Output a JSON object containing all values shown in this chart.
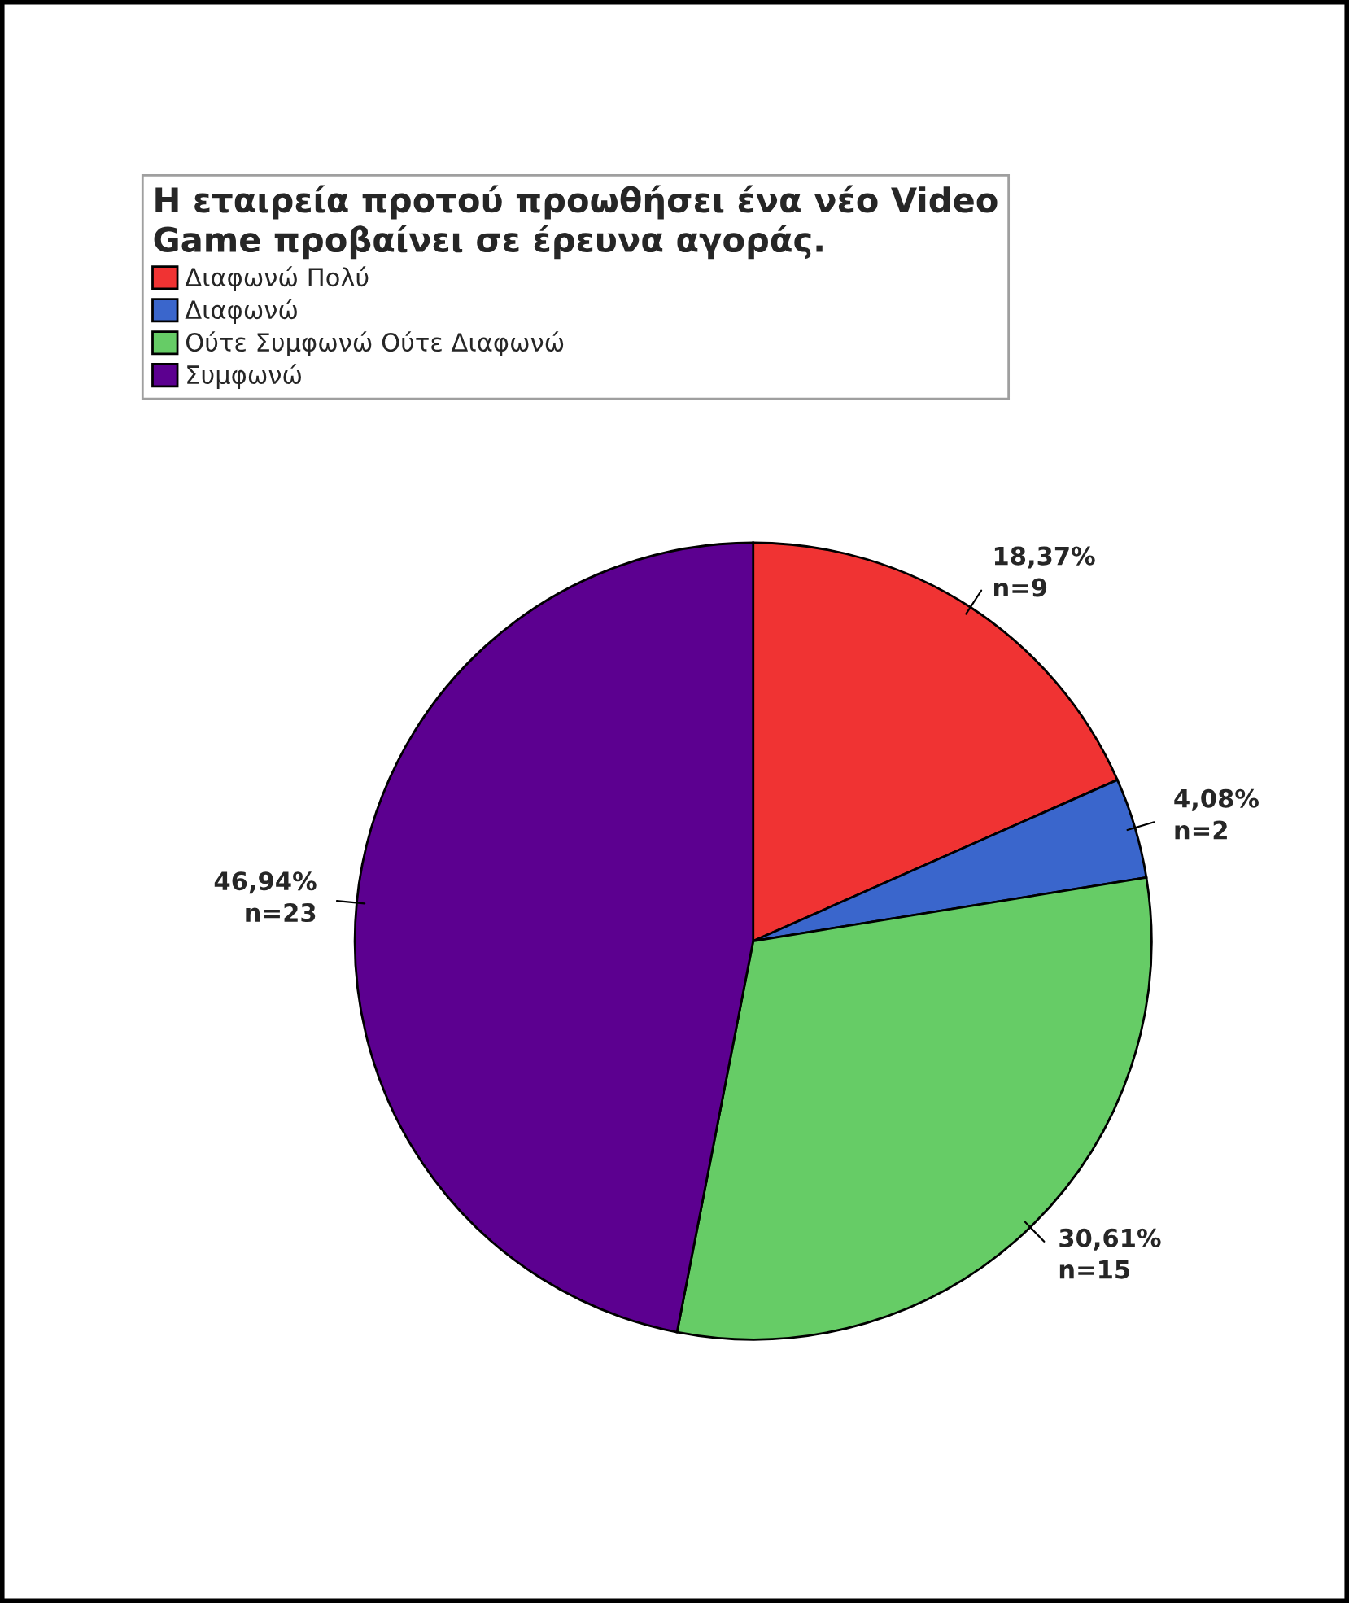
{
  "chart_data": {
    "type": "pie",
    "legend_title": "Η εταιρεία προτού προωθήσει ένα νέο Video Game προβαίνει σε έρευνα αγοράς.",
    "categories": [
      "Διαφωνώ Πολύ",
      "Διαφωνώ",
      "Ούτε Συμφωνώ Ούτε Διαφωνώ",
      "Συμφωνώ"
    ],
    "values": [
      9,
      2,
      15,
      23
    ],
    "value_labels": [
      "18,37%\nn=9",
      "4,08%\nn=2",
      "30,61%\nn=15",
      "46,94%\nn=23"
    ],
    "colors": [
      "#f03333",
      "#3a66cc",
      "#66cc66",
      "#5c0090"
    ],
    "legend": "top left"
  }
}
